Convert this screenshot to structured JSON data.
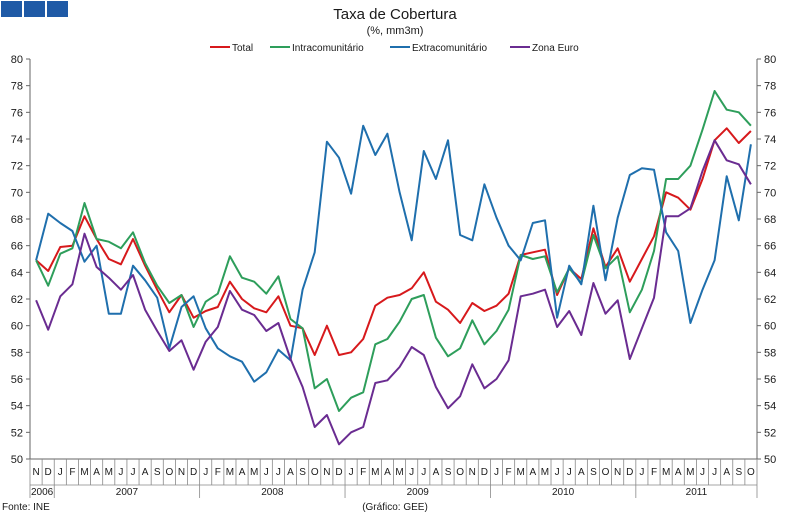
{
  "badges": [
    "blue-square",
    "blue-square",
    "blue-square"
  ],
  "source_left": "Fonte: INE",
  "source_center": "(Gráfico: GEE)",
  "chart_data": {
    "type": "line",
    "title": "Taxa de Cobertura",
    "subtitle": "(%, mm3m)",
    "ylim": [
      50,
      80
    ],
    "yticks": [
      50,
      52,
      54,
      56,
      58,
      60,
      62,
      64,
      66,
      68,
      70,
      72,
      74,
      76,
      78,
      80
    ],
    "grid": false,
    "legend_position": "top",
    "x": [
      "N",
      "D",
      "J",
      "F",
      "M",
      "A",
      "M",
      "J",
      "J",
      "A",
      "S",
      "O",
      "N",
      "D",
      "J",
      "F",
      "M",
      "A",
      "M",
      "J",
      "J",
      "A",
      "S",
      "O",
      "N",
      "D",
      "J",
      "F",
      "M",
      "A",
      "M",
      "J",
      "J",
      "A",
      "S",
      "O",
      "N",
      "D",
      "J",
      "F",
      "M",
      "A",
      "M",
      "J",
      "J",
      "A",
      "S",
      "O",
      "N",
      "D",
      "J",
      "F",
      "M",
      "A",
      "M",
      "J",
      "J",
      "A",
      "S",
      "O"
    ],
    "year_labels": [
      {
        "label": "2006",
        "start": 0,
        "end": 1
      },
      {
        "label": "2007",
        "start": 2,
        "end": 13
      },
      {
        "label": "2008",
        "start": 14,
        "end": 25
      },
      {
        "label": "2009",
        "start": 26,
        "end": 37
      },
      {
        "label": "2010",
        "start": 38,
        "end": 49
      },
      {
        "label": "2011",
        "start": 50,
        "end": 59
      }
    ],
    "series": [
      {
        "name": "Total",
        "color": "#d7191c",
        "values": [
          64.9,
          64.1,
          65.9,
          66.0,
          68.2,
          66.5,
          65.0,
          64.6,
          66.5,
          64.5,
          62.7,
          61.0,
          62.3,
          60.6,
          61.1,
          61.4,
          63.3,
          62.0,
          61.3,
          61.0,
          62.2,
          60.0,
          59.8,
          57.8,
          60.0,
          57.8,
          58.0,
          59.0,
          61.5,
          62.1,
          62.3,
          62.8,
          64.0,
          61.8,
          61.2,
          60.2,
          61.7,
          61.1,
          61.5,
          62.4,
          65.3,
          65.5,
          65.7,
          62.3,
          64.3,
          63.5,
          67.3,
          64.4,
          65.8,
          63.3,
          65.0,
          66.7,
          70.0,
          69.6,
          68.7,
          71.0,
          73.9,
          74.8,
          73.7,
          74.6
        ]
      },
      {
        "name": "Intracomunitário",
        "color": "#2e9e5b",
        "values": [
          64.9,
          63.0,
          65.4,
          65.8,
          69.2,
          66.5,
          66.3,
          65.8,
          67.0,
          64.7,
          63.0,
          61.7,
          62.3,
          59.9,
          61.8,
          62.4,
          65.2,
          63.6,
          63.3,
          62.4,
          63.7,
          60.5,
          59.8,
          55.3,
          56.0,
          53.6,
          54.6,
          55.0,
          58.6,
          59.0,
          60.3,
          62.0,
          62.3,
          59.1,
          57.7,
          58.3,
          60.4,
          58.6,
          59.6,
          61.2,
          65.3,
          65.0,
          65.2,
          62.5,
          64.3,
          63.2,
          66.8,
          64.3,
          65.2,
          61.0,
          62.7,
          65.6,
          71.0,
          71.0,
          72.0,
          74.7,
          77.6,
          76.2,
          76.0,
          75.0
        ]
      },
      {
        "name": "Extracomunitário",
        "color": "#1f6fad",
        "values": [
          64.9,
          68.4,
          67.7,
          67.1,
          64.8,
          66.0,
          60.9,
          60.9,
          64.5,
          63.4,
          62.1,
          58.3,
          61.4,
          62.2,
          59.8,
          58.3,
          57.7,
          57.3,
          55.8,
          56.5,
          58.2,
          57.4,
          62.7,
          65.5,
          73.8,
          72.6,
          69.9,
          75.0,
          72.8,
          74.4,
          70.0,
          66.4,
          73.1,
          71.0,
          73.9,
          66.8,
          66.4,
          70.6,
          68.1,
          66.0,
          64.9,
          67.7,
          67.9,
          60.6,
          64.5,
          63.1,
          69.0,
          63.4,
          68.1,
          71.3,
          71.8,
          71.7,
          67.0,
          65.6,
          60.2,
          62.7,
          64.9,
          71.2,
          67.9,
          73.6
        ]
      },
      {
        "name": "Zona Euro",
        "color": "#6a2c91",
        "values": [
          61.9,
          59.7,
          62.2,
          63.1,
          66.9,
          64.4,
          63.6,
          62.7,
          63.8,
          61.2,
          59.6,
          58.1,
          58.9,
          56.7,
          58.8,
          59.9,
          62.6,
          61.2,
          60.8,
          59.6,
          60.2,
          57.5,
          55.4,
          52.4,
          53.3,
          51.1,
          52.0,
          52.4,
          55.7,
          55.9,
          56.9,
          58.4,
          57.8,
          55.4,
          53.8,
          54.7,
          57.1,
          55.3,
          56.0,
          57.4,
          62.2,
          62.4,
          62.7,
          59.9,
          61.1,
          59.3,
          63.2,
          60.9,
          61.9,
          57.5,
          59.8,
          62.1,
          68.2,
          68.2,
          68.8,
          71.6,
          73.9,
          72.4,
          72.1,
          70.6
        ]
      }
    ]
  }
}
